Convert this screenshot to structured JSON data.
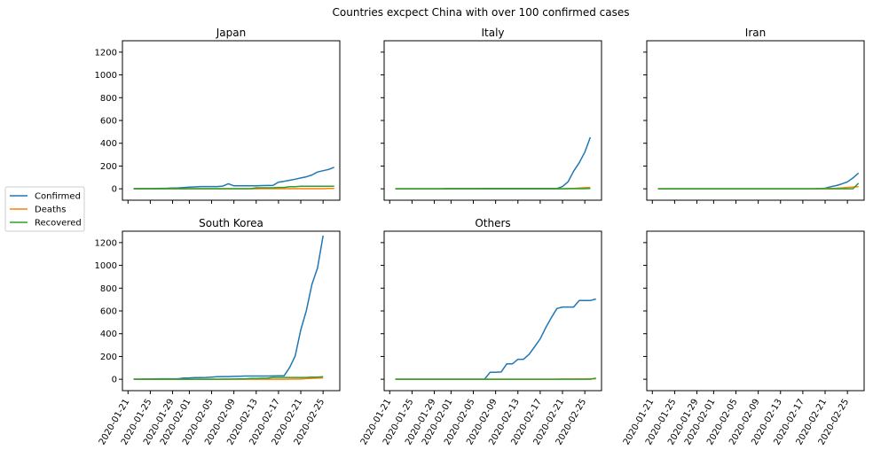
{
  "figure": {
    "title": "Countries excpect China with over 100 confirmed cases"
  },
  "legend": {
    "placement": "left",
    "entries": [
      {
        "name": "Confirmed",
        "color": "#1f77b4"
      },
      {
        "name": "Deaths",
        "color": "#ff7f0e"
      },
      {
        "name": "Recovered",
        "color": "#2ca02c"
      }
    ]
  },
  "chart_data": [
    {
      "type": "line",
      "title": "Japan",
      "x_start": "2020-01-22",
      "x_end": "2020-02-26",
      "ylim": [
        0,
        1300
      ],
      "yticks": [
        "0",
        "200",
        "400",
        "600",
        "800",
        "1000",
        "1200"
      ],
      "xtick_labels": [],
      "series": [
        {
          "name": "Confirmed",
          "values": [
            2,
            2,
            2,
            2,
            3,
            4,
            5,
            7,
            8,
            11,
            14,
            17,
            20,
            20,
            20,
            20,
            24,
            45,
            26,
            26,
            26,
            27,
            27,
            28,
            29,
            29,
            59,
            66,
            75,
            84,
            95,
            105,
            122,
            147,
            159,
            170,
            189
          ]
        },
        {
          "name": "Deaths",
          "values": [
            0,
            0,
            0,
            0,
            0,
            0,
            0,
            0,
            0,
            0,
            0,
            0,
            0,
            0,
            0,
            0,
            0,
            0,
            0,
            0,
            0,
            0,
            0,
            1,
            1,
            1,
            1,
            1,
            1,
            1,
            1,
            1,
            1,
            1,
            1,
            3,
            3
          ]
        },
        {
          "name": "Recovered",
          "values": [
            0,
            0,
            0,
            0,
            0,
            0,
            1,
            1,
            1,
            1,
            1,
            1,
            1,
            1,
            1,
            1,
            1,
            1,
            1,
            1,
            1,
            1,
            9,
            9,
            9,
            9,
            12,
            12,
            18,
            18,
            22,
            22,
            22,
            22,
            22,
            22,
            22
          ]
        }
      ]
    },
    {
      "type": "line",
      "title": "Italy",
      "x_start": "2020-01-22",
      "x_end": "2020-02-26",
      "ylim": [
        0,
        1300
      ],
      "yticks": [],
      "xtick_labels": [],
      "series": [
        {
          "name": "Confirmed",
          "values": [
            0,
            0,
            0,
            0,
            0,
            0,
            0,
            0,
            0,
            2,
            2,
            2,
            2,
            2,
            2,
            2,
            3,
            3,
            3,
            3,
            3,
            3,
            3,
            3,
            3,
            3,
            3,
            3,
            3,
            3,
            20,
            62,
            155,
            229,
            322,
            453
          ]
        },
        {
          "name": "Deaths",
          "values": [
            0,
            0,
            0,
            0,
            0,
            0,
            0,
            0,
            0,
            0,
            0,
            0,
            0,
            0,
            0,
            0,
            0,
            0,
            0,
            0,
            0,
            0,
            0,
            0,
            0,
            0,
            0,
            0,
            0,
            0,
            1,
            2,
            3,
            7,
            10,
            12
          ]
        },
        {
          "name": "Recovered",
          "values": [
            0,
            0,
            0,
            0,
            0,
            0,
            0,
            0,
            0,
            0,
            0,
            0,
            0,
            0,
            0,
            0,
            0,
            0,
            0,
            0,
            0,
            0,
            0,
            0,
            0,
            0,
            0,
            0,
            0,
            0,
            0,
            1,
            2,
            1,
            1,
            3
          ]
        }
      ]
    },
    {
      "type": "line",
      "title": "Iran",
      "x_start": "2020-01-22",
      "x_end": "2020-02-26",
      "ylim": [
        0,
        1300
      ],
      "yticks": [],
      "xtick_labels": [],
      "series": [
        {
          "name": "Confirmed",
          "values": [
            0,
            0,
            0,
            0,
            0,
            0,
            0,
            0,
            0,
            0,
            0,
            0,
            0,
            0,
            0,
            0,
            0,
            0,
            0,
            0,
            0,
            0,
            0,
            0,
            0,
            0,
            0,
            0,
            0,
            2,
            5,
            18,
            28,
            43,
            61,
            95,
            139
          ]
        },
        {
          "name": "Deaths",
          "values": [
            0,
            0,
            0,
            0,
            0,
            0,
            0,
            0,
            0,
            0,
            0,
            0,
            0,
            0,
            0,
            0,
            0,
            0,
            0,
            0,
            0,
            0,
            0,
            0,
            0,
            0,
            0,
            0,
            0,
            2,
            2,
            4,
            5,
            8,
            12,
            16,
            19
          ]
        },
        {
          "name": "Recovered",
          "values": [
            0,
            0,
            0,
            0,
            0,
            0,
            0,
            0,
            0,
            0,
            0,
            0,
            0,
            0,
            0,
            0,
            0,
            0,
            0,
            0,
            0,
            0,
            0,
            0,
            0,
            0,
            0,
            0,
            0,
            0,
            0,
            0,
            0,
            0,
            0,
            0,
            49
          ]
        }
      ]
    },
    {
      "type": "line",
      "title": "South Korea",
      "x_start": "2020-01-22",
      "x_end": "2020-02-26",
      "ylim": [
        0,
        1300
      ],
      "yticks": [
        "0",
        "200",
        "400",
        "600",
        "800",
        "1000",
        "1200"
      ],
      "xtick_labels": [
        "2020-01-21",
        "2020-01-25",
        "2020-01-29",
        "2020-02-01",
        "2020-02-05",
        "2020-02-09",
        "2020-02-13",
        "2020-02-17",
        "2020-02-21",
        "2020-02-25"
      ],
      "series": [
        {
          "name": "Confirmed",
          "values": [
            1,
            1,
            2,
            2,
            3,
            4,
            4,
            4,
            4,
            11,
            12,
            15,
            15,
            16,
            19,
            23,
            24,
            24,
            25,
            27,
            28,
            28,
            28,
            28,
            28,
            29,
            30,
            31,
            104,
            204,
            433,
            602,
            833,
            977,
            1261
          ]
        },
        {
          "name": "Deaths",
          "values": [
            0,
            0,
            0,
            0,
            0,
            0,
            0,
            0,
            0,
            0,
            0,
            0,
            0,
            0,
            0,
            0,
            0,
            0,
            0,
            0,
            0,
            0,
            0,
            0,
            0,
            0,
            0,
            0,
            1,
            2,
            2,
            6,
            8,
            10,
            12
          ]
        },
        {
          "name": "Recovered",
          "values": [
            0,
            0,
            0,
            0,
            0,
            0,
            0,
            0,
            0,
            0,
            0,
            0,
            0,
            0,
            0,
            0,
            1,
            1,
            2,
            3,
            3,
            7,
            7,
            9,
            10,
            16,
            16,
            16,
            16,
            16,
            16,
            16,
            18,
            18,
            22
          ]
        }
      ]
    },
    {
      "type": "line",
      "title": "Others",
      "x_start": "2020-01-22",
      "x_end": "2020-02-26",
      "ylim": [
        0,
        1300
      ],
      "yticks": [],
      "xtick_labels": [
        "2020-01-21",
        "2020-01-25",
        "2020-01-29",
        "2020-02-01",
        "2020-02-05",
        "2020-02-09",
        "2020-02-13",
        "2020-02-17",
        "2020-02-21",
        "2020-02-25"
      ],
      "series": [
        {
          "name": "Confirmed",
          "values": [
            0,
            0,
            0,
            0,
            0,
            0,
            0,
            0,
            0,
            0,
            0,
            0,
            0,
            0,
            0,
            0,
            0,
            61,
            61,
            64,
            135,
            135,
            175,
            175,
            218,
            285,
            355,
            454,
            542,
            621,
            634,
            634,
            634,
            691,
            691,
            691,
            705
          ]
        },
        {
          "name": "Deaths",
          "values": [
            0,
            0,
            0,
            0,
            0,
            0,
            0,
            0,
            0,
            0,
            0,
            0,
            0,
            0,
            0,
            0,
            0,
            0,
            0,
            0,
            0,
            0,
            0,
            0,
            0,
            0,
            0,
            0,
            0,
            0,
            2,
            2,
            2,
            3,
            3,
            4,
            4
          ]
        },
        {
          "name": "Recovered",
          "values": [
            0,
            0,
            0,
            0,
            0,
            0,
            0,
            0,
            0,
            0,
            0,
            0,
            0,
            0,
            0,
            0,
            0,
            0,
            0,
            0,
            0,
            0,
            0,
            0,
            0,
            0,
            0,
            0,
            0,
            0,
            0,
            0,
            0,
            0,
            0,
            0,
            10
          ]
        }
      ]
    },
    {
      "type": "line",
      "title": "",
      "x_start": "2020-01-22",
      "x_end": "2020-02-26",
      "ylim": [
        0,
        1300
      ],
      "yticks": [],
      "xtick_labels": [
        "2020-01-21",
        "2020-01-25",
        "2020-01-29",
        "2020-02-01",
        "2020-02-05",
        "2020-02-09",
        "2020-02-13",
        "2020-02-17",
        "2020-02-21",
        "2020-02-25"
      ],
      "series": []
    }
  ]
}
